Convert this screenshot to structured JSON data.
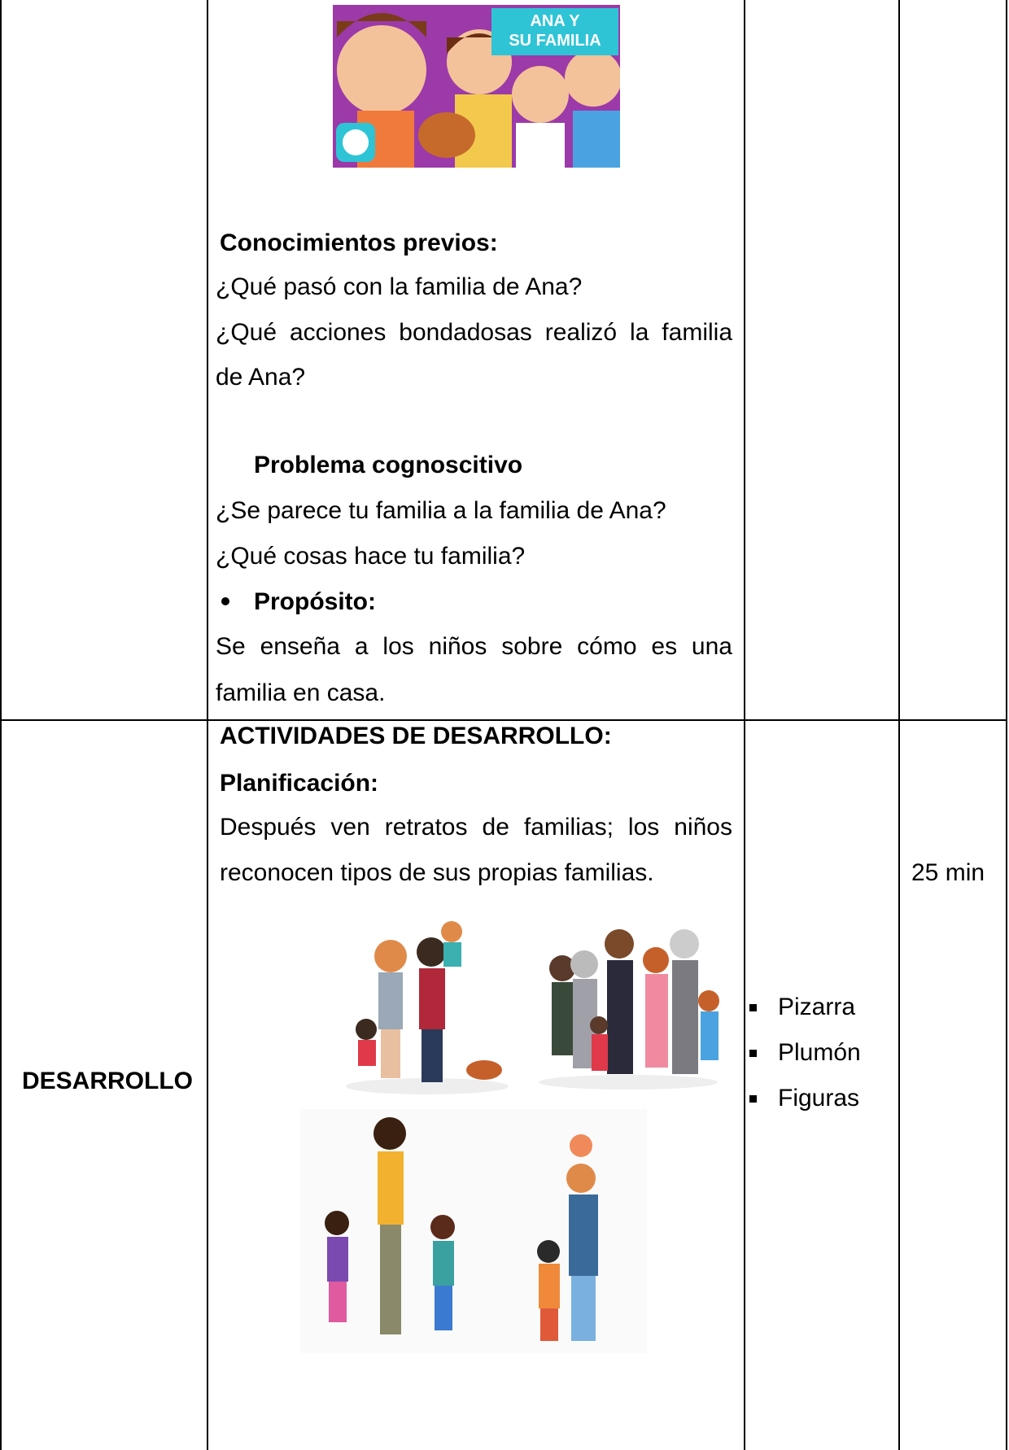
{
  "table": {
    "rows": [
      {
        "content": {
          "image_title": [
            "ANA Y",
            "SU FAMILIA"
          ],
          "heading": "Conocimientos previos:",
          "questions": [
            "¿Qué pasó con la familia de Ana?",
            "¿Qué acciones bondadosas realizó la familia",
            "de Ana?"
          ],
          "problem_heading": "Problema cognoscitivo",
          "problem_questions": [
            "¿Se parece tu familia a la familia de Ana?",
            "¿Qué cosas hace tu familia?"
          ],
          "purpose_heading": "Propósito:",
          "purpose_text": [
            "Se enseña a los niños sobre cómo es una",
            "familia en casa."
          ]
        }
      },
      {
        "stage": "DESARROLLO",
        "content": {
          "heading": "ACTIVIDADES DE DESARROLLO:",
          "subheading": "Planificación:",
          "text": [
            "Después ven retratos de familias; los niños",
            "reconocen tipos de sus propias familias."
          ]
        },
        "materials": [
          "Pizarra",
          "Plumón",
          "Figuras"
        ],
        "time": "25 min"
      }
    ]
  }
}
